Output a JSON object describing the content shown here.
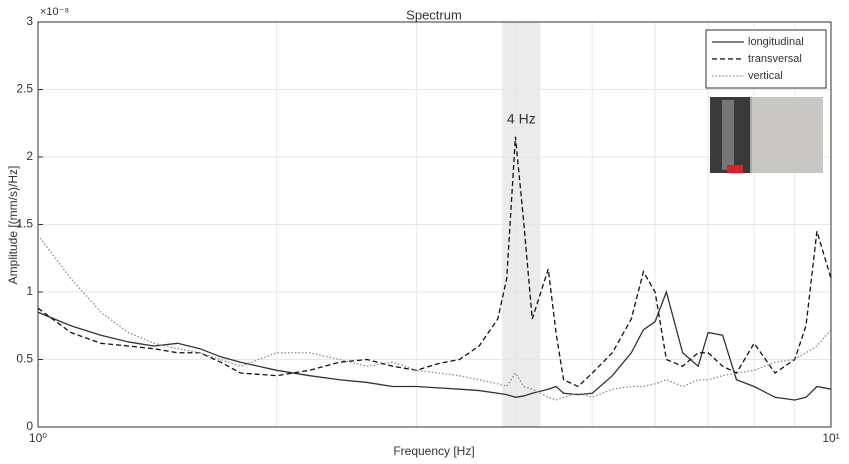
{
  "chart_data": {
    "type": "line",
    "title": "Spectrum",
    "x_label": "Frequency [Hz]",
    "y_label": "Amplitude [(mm/s)/Hz]",
    "y_exponent": "×10⁻⁸",
    "annotation": "4 Hz",
    "highlight_band": [
      3.85,
      4.3
    ],
    "x_log": true,
    "grid": true,
    "legend": "top-right",
    "xlim": [
      1,
      10
    ],
    "xticks": [
      {
        "value": 1,
        "label": "10⁰"
      },
      {
        "value": 10,
        "label": "10¹"
      }
    ],
    "xgrid_minor": [
      2,
      3,
      4,
      5,
      6,
      7,
      8,
      9
    ],
    "ylim": [
      0,
      3
    ],
    "yticks": [
      0,
      0.5,
      1,
      1.5,
      2,
      2.5,
      3
    ],
    "x": [
      1,
      1.1,
      1.2,
      1.3,
      1.4,
      1.5,
      1.6,
      1.7,
      1.8,
      2,
      2.2,
      2.4,
      2.6,
      2.8,
      3,
      3.2,
      3.4,
      3.6,
      3.8,
      3.9,
      4,
      4.1,
      4.2,
      4.4,
      4.5,
      4.6,
      4.8,
      5,
      5.3,
      5.6,
      5.8,
      6,
      6.2,
      6.5,
      6.8,
      7,
      7.3,
      7.6,
      8,
      8.5,
      9,
      9.3,
      9.6,
      10
    ],
    "series": [
      {
        "name": "longitudinal",
        "color": "#333333",
        "dash": "solid",
        "values": [
          0.85,
          0.75,
          0.68,
          0.63,
          0.6,
          0.62,
          0.58,
          0.52,
          0.48,
          0.42,
          0.38,
          0.35,
          0.33,
          0.3,
          0.3,
          0.29,
          0.28,
          0.27,
          0.25,
          0.24,
          0.22,
          0.23,
          0.25,
          0.28,
          0.3,
          0.25,
          0.24,
          0.25,
          0.38,
          0.55,
          0.72,
          0.78,
          1.0,
          0.55,
          0.45,
          0.7,
          0.68,
          0.35,
          0.3,
          0.22,
          0.2,
          0.22,
          0.3,
          0.28
        ]
      },
      {
        "name": "transversal",
        "color": "#111111",
        "dash": "dashed",
        "values": [
          0.88,
          0.7,
          0.62,
          0.6,
          0.58,
          0.55,
          0.55,
          0.48,
          0.4,
          0.38,
          0.42,
          0.48,
          0.5,
          0.45,
          0.42,
          0.47,
          0.5,
          0.6,
          0.8,
          1.1,
          2.15,
          1.5,
          0.8,
          1.17,
          0.7,
          0.35,
          0.3,
          0.4,
          0.55,
          0.8,
          1.15,
          1.0,
          0.5,
          0.45,
          0.55,
          0.55,
          0.45,
          0.4,
          0.62,
          0.4,
          0.5,
          0.75,
          1.45,
          1.1
        ]
      },
      {
        "name": "vertical",
        "color": "#8a8a8a",
        "dash": "dotted",
        "values": [
          1.42,
          1.1,
          0.85,
          0.7,
          0.62,
          0.58,
          0.55,
          0.5,
          0.45,
          0.55,
          0.55,
          0.5,
          0.45,
          0.48,
          0.42,
          0.4,
          0.38,
          0.35,
          0.32,
          0.3,
          0.4,
          0.3,
          0.28,
          0.22,
          0.2,
          0.22,
          0.25,
          0.22,
          0.28,
          0.3,
          0.3,
          0.32,
          0.35,
          0.3,
          0.35,
          0.35,
          0.38,
          0.4,
          0.42,
          0.48,
          0.5,
          0.55,
          0.6,
          0.72
        ]
      }
    ]
  }
}
